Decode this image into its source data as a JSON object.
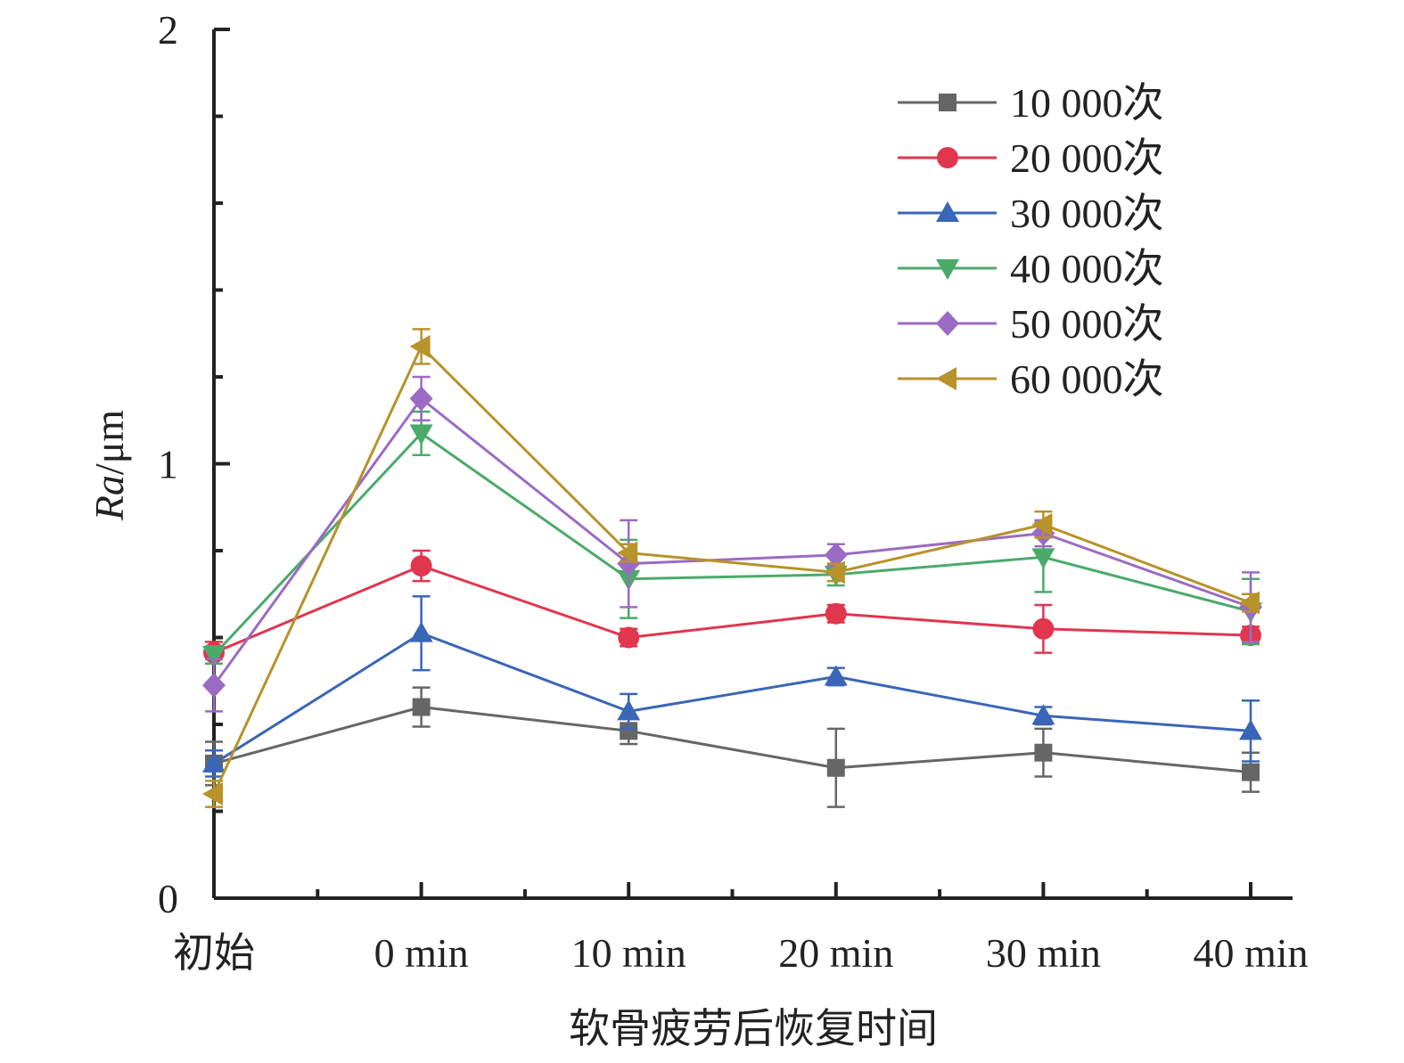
{
  "chart_data": {
    "type": "line",
    "xlabel": "软骨疲劳后恢复时间",
    "ylabel_main": "Ra",
    "ylabel_unit": "/μm",
    "categories": [
      "初始",
      "0 min",
      "10 min",
      "20 min",
      "30 min",
      "40 min"
    ],
    "ylim": [
      0,
      2
    ],
    "yticks": [
      "0",
      "1",
      "2"
    ],
    "grid": false,
    "legend_position": "top-right",
    "error_bars": true,
    "series": [
      {
        "name": "10 000次",
        "color": "#666666",
        "marker": "square",
        "values": [
          0.31,
          0.44,
          0.385,
          0.3,
          0.335,
          0.29
        ],
        "errors": [
          0.05,
          0.045,
          0.03,
          0.09,
          0.055,
          0.045
        ]
      },
      {
        "name": "20 000次",
        "color": "#e0364e",
        "marker": "circle",
        "values": [
          0.565,
          0.765,
          0.6,
          0.655,
          0.62,
          0.605
        ],
        "errors": [
          0.025,
          0.035,
          0.02,
          0.02,
          0.055,
          0.02
        ]
      },
      {
        "name": "30 000次",
        "color": "#3a66b8",
        "marker": "triangle-up",
        "values": [
          0.31,
          0.61,
          0.43,
          0.51,
          0.42,
          0.385
        ],
        "errors": [
          0.03,
          0.085,
          0.04,
          0.02,
          0.02,
          0.07
        ]
      },
      {
        "name": "40 000次",
        "color": "#4aaa6a",
        "marker": "triangle-down",
        "values": [
          0.56,
          1.07,
          0.735,
          0.745,
          0.785,
          0.66
        ],
        "errors": [
          0.02,
          0.05,
          0.09,
          0.025,
          0.08,
          0.075
        ]
      },
      {
        "name": "50 000次",
        "color": "#9b6bc4",
        "marker": "diamond",
        "values": [
          0.49,
          1.15,
          0.77,
          0.79,
          0.84,
          0.67
        ],
        "errors": [
          0.06,
          0.05,
          0.1,
          0.025,
          0.03,
          0.08
        ]
      },
      {
        "name": "60 000次",
        "color": "#b8922a",
        "marker": "triangle-left",
        "values": [
          0.24,
          1.27,
          0.795,
          0.75,
          0.86,
          0.68
        ],
        "errors": [
          0.03,
          0.04,
          0.02,
          0.02,
          0.03,
          0.02
        ]
      }
    ]
  }
}
